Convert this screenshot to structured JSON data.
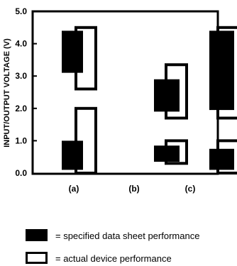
{
  "chart_data": {
    "type": "floating-bar",
    "ylabel": "INPUT/OUTPUT VOLTAGE (V)",
    "ylim": [
      0.0,
      5.0
    ],
    "yticks": [
      "0.0",
      "1.0",
      "2.0",
      "3.0",
      "4.0",
      "5.0"
    ],
    "categories": [
      "(a)",
      "(b)",
      "(c)"
    ],
    "series": [
      {
        "name": "specified data sheet performance",
        "fill": "#000000",
        "ranges": [
          [
            [
              0.1,
              1.0
            ],
            [
              3.1,
              4.4
            ]
          ],
          [
            [
              0.35,
              0.85
            ],
            [
              1.9,
              2.9
            ]
          ],
          [
            [
              0.1,
              0.75
            ],
            [
              1.95,
              4.4
            ]
          ]
        ]
      },
      {
        "name": "actual device performance",
        "fill": "#ffffff",
        "ranges": [
          [
            [
              0.0,
              2.0
            ],
            [
              2.6,
              4.5
            ]
          ],
          [
            [
              0.3,
              1.0
            ],
            [
              1.7,
              3.35
            ]
          ],
          [
            [
              0.0,
              1.0
            ],
            [
              1.7,
              4.5
            ]
          ]
        ]
      }
    ]
  },
  "legend": {
    "items": [
      {
        "text": "= specified data sheet performance"
      },
      {
        "text": "= actual device performance"
      }
    ]
  }
}
